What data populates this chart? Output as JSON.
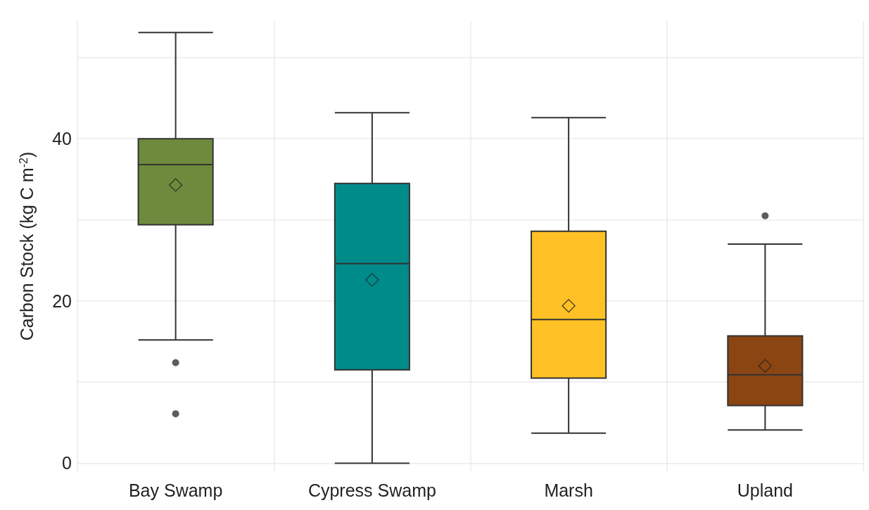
{
  "chart_data": {
    "type": "box",
    "ylabel": "Carbon Stock (kg C m$^{-2}$)",
    "categories": [
      "Bay Swamp",
      "Cypress Swamp",
      "Marsh",
      "Upland"
    ],
    "colors": [
      "#6e8b3d",
      "#008b8b",
      "#ffc125",
      "#8b4513"
    ],
    "boxes": [
      {
        "low": 15.2,
        "q1": 29.4,
        "median": 36.8,
        "q3": 40.0,
        "high": 53.1,
        "mean": 34.3,
        "outliers": [
          12.4,
          6.1
        ]
      },
      {
        "low": 0,
        "q1": 11.5,
        "median": 24.6,
        "q3": 34.5,
        "high": 43.2,
        "mean": 22.6
      },
      {
        "low": 3.7,
        "q1": 10.5,
        "median": 17.7,
        "q3": 28.6,
        "high": 42.6,
        "mean": 19.4
      },
      {
        "low": 4.1,
        "q1": 7.1,
        "median": 10.9,
        "q3": 15.7,
        "high": 27.0,
        "mean": 12.0,
        "outliers": [
          30.5
        ]
      }
    ],
    "ylim": [
      -1,
      54.5
    ],
    "yticks": [
      0,
      {
        "value": 10,
        "label": null
      },
      20,
      {
        "value": 30,
        "label": null
      },
      40,
      {
        "value": 50,
        "label": null
      }
    ],
    "grid": true
  }
}
